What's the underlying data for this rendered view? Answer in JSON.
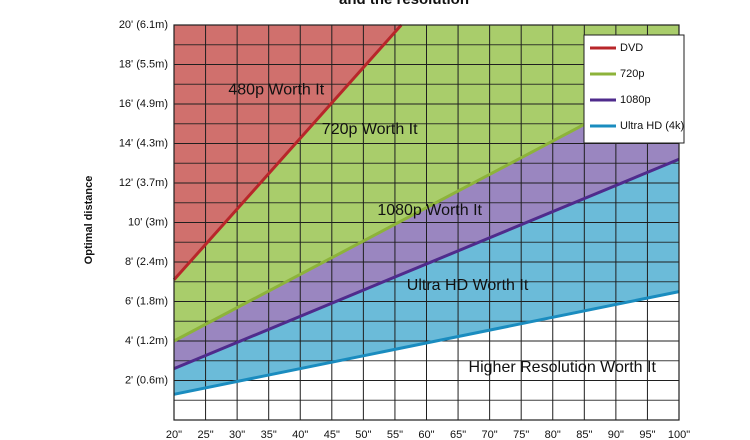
{
  "chart_data": {
    "type": "area",
    "title": "and the resolution",
    "ylabel": "Optimal distance",
    "xlabel": "",
    "xlim": [
      20,
      100
    ],
    "ylim": [
      0,
      20
    ],
    "x_ticks": [
      20,
      25,
      30,
      35,
      40,
      45,
      50,
      55,
      60,
      65,
      70,
      75,
      80,
      85,
      90,
      95,
      100
    ],
    "x_tick_labels": [
      "20\"",
      "25\"",
      "30\"",
      "35\"",
      "40\"",
      "45\"",
      "50\"",
      "55\"",
      "60\"",
      "65\"",
      "70\"",
      "75\"",
      "80\"",
      "85\"",
      "90\"",
      "95\"",
      "100\""
    ],
    "y_ticks": [
      2,
      4,
      6,
      8,
      10,
      12,
      14,
      16,
      18,
      20
    ],
    "y_tick_labels": [
      "2' (0.6m)",
      "4' (1.2m)",
      "6' (1.8m)",
      "8' (2.4m)",
      "10' (3m)",
      "12' (3.7m)",
      "14' (4.3m)",
      "16' (4.9m)",
      "18' (5.5m)",
      "20' (6.1m)"
    ],
    "grid": true,
    "legend_position": "top-right",
    "series": [
      {
        "name": "DVD",
        "x": [
          20,
          56
        ],
        "values": [
          7.1,
          20
        ],
        "color": "#b8262a"
      },
      {
        "name": "720p",
        "x": [
          20,
          100
        ],
        "values": [
          4.0,
          17.5
        ],
        "color": "#8db33a"
      },
      {
        "name": "1080p",
        "x": [
          20,
          100
        ],
        "values": [
          2.6,
          13.2
        ],
        "color": "#4f2b8c"
      },
      {
        "name": "Ultra HD (4k)",
        "x": [
          20,
          100
        ],
        "values": [
          1.3,
          6.5
        ],
        "color": "#1a8cbf"
      }
    ],
    "regions": [
      {
        "label": "480p Worth It",
        "color": "#d0706d"
      },
      {
        "label": "720p Worth It",
        "color": "#a9cd6b"
      },
      {
        "label": "1080p Worth It",
        "color": "#9a86c0"
      },
      {
        "label": "Ultra HD Worth It",
        "color": "#6bbbd9"
      },
      {
        "label": "Higher Resolution Worth It",
        "color": "#ffffff"
      }
    ]
  }
}
